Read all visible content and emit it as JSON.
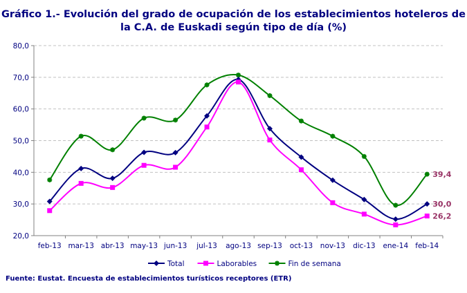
{
  "chart_data": {
    "type": "line",
    "title": "Gráfico 1.-  Evolución del grado de ocupación de los establecimientos hoteleros de la C.A. de Euskadi según tipo de día (%)",
    "source": "Fuente: Eustat. Encuesta de establecimientos turísticos receptores (ETR)",
    "categories": [
      "feb-13",
      "mar-13",
      "abr-13",
      "may-13",
      "jun-13",
      "jul-13",
      "ago-13",
      "sep-13",
      "oct-13",
      "nov-13",
      "dic-13",
      "ene-14",
      "feb-14"
    ],
    "ylim": [
      20,
      80
    ],
    "yticks": [
      "20,0",
      "30,0",
      "40,0",
      "50,0",
      "60,0",
      "70,0",
      "80,0"
    ],
    "grid": true,
    "legend": "bottom",
    "series": [
      {
        "name": "Total",
        "color": "#000080",
        "marker": "diamond",
        "values": [
          30.8,
          41.2,
          38.1,
          46.3,
          46.2,
          57.8,
          69.3,
          53.8,
          44.8,
          37.5,
          31.4,
          25.2,
          30.0
        ],
        "last_label": "30,0"
      },
      {
        "name": "Laborables",
        "color": "#FF00FF",
        "marker": "square",
        "values": [
          27.9,
          36.5,
          35.2,
          42.2,
          41.6,
          54.3,
          68.5,
          50.2,
          40.8,
          30.4,
          26.8,
          23.4,
          26.2
        ],
        "last_label": "26,2"
      },
      {
        "name": "Fin de semana",
        "color": "#008000",
        "marker": "star",
        "values": [
          37.6,
          51.4,
          47.1,
          57.1,
          56.5,
          67.6,
          70.7,
          64.2,
          56.2,
          51.4,
          45.0,
          29.6,
          39.4
        ],
        "last_label": "39,4"
      }
    ]
  }
}
